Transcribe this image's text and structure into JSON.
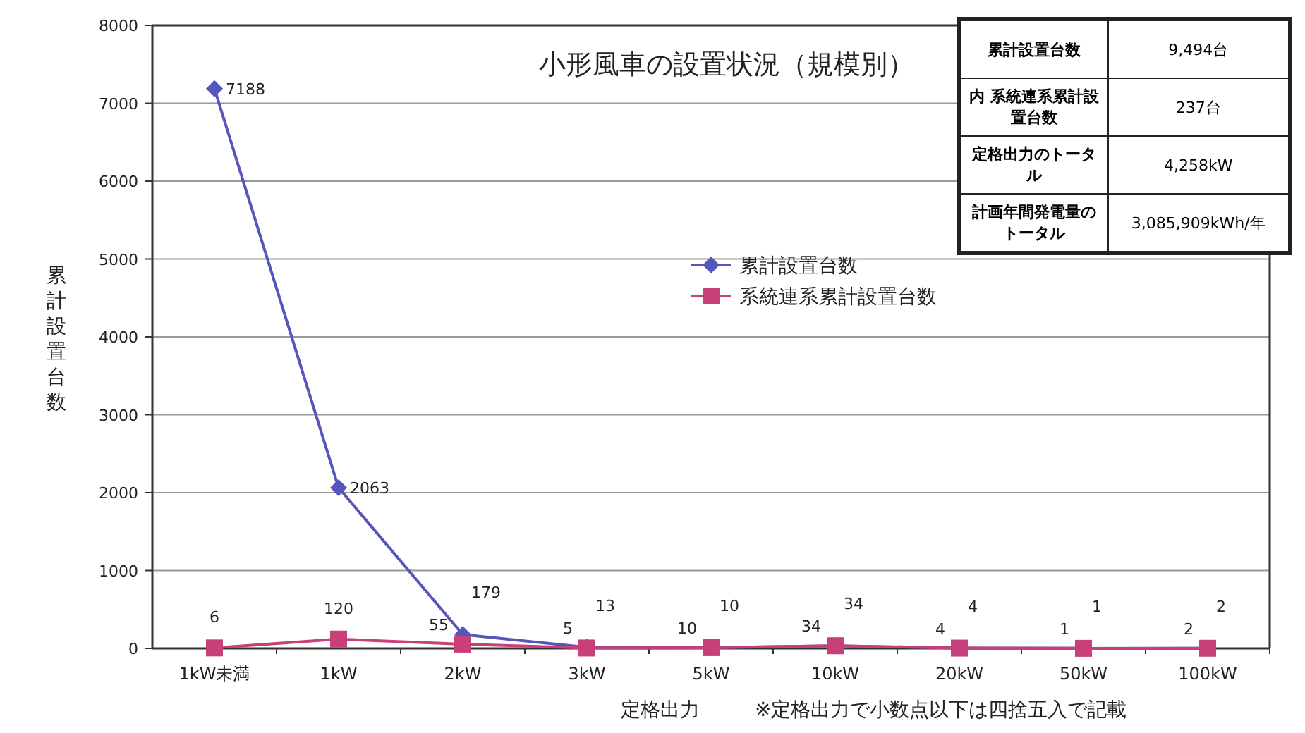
{
  "chart_data": [
    {
      "type": "line",
      "title": "小形風車の設置状況（規模別）",
      "xlabel": "定格出力",
      "ylabel": "累計設置台数",
      "annotations": [
        "※定格出力で小数点以下は四捨五入で記載"
      ],
      "categories": [
        "1kW未満",
        "1kW",
        "2kW",
        "3kW",
        "5kW",
        "10kW",
        "20kW",
        "50kW",
        "100kW"
      ],
      "series": [
        {
          "name": "累計設置台数",
          "color": "#5555bb",
          "marker": "diamond",
          "values": [
            7188,
            2063,
            179,
            13,
            10,
            34,
            4,
            1,
            2
          ]
        },
        {
          "name": "系統連系累計設置台数",
          "color": "#c8407a",
          "marker": "square",
          "values": [
            6,
            120,
            55,
            5,
            10,
            34,
            4,
            1,
            2
          ]
        }
      ],
      "ylim": [
        0,
        8000
      ],
      "yticks": [
        0,
        1000,
        2000,
        3000,
        4000,
        5000,
        6000,
        7000,
        8000
      ],
      "grid": "y",
      "legend": "center",
      "data_labels": true
    },
    {
      "type": "other",
      "categories": [
        "累計設置台数",
        "内 系統連系累計設置台数",
        "定格出力のトータル",
        "計画年間発電量のトータル"
      ],
      "value_labels": [
        "9,494台",
        "237台",
        "4,258kW",
        "3,085,909kWh/年"
      ]
    }
  ]
}
